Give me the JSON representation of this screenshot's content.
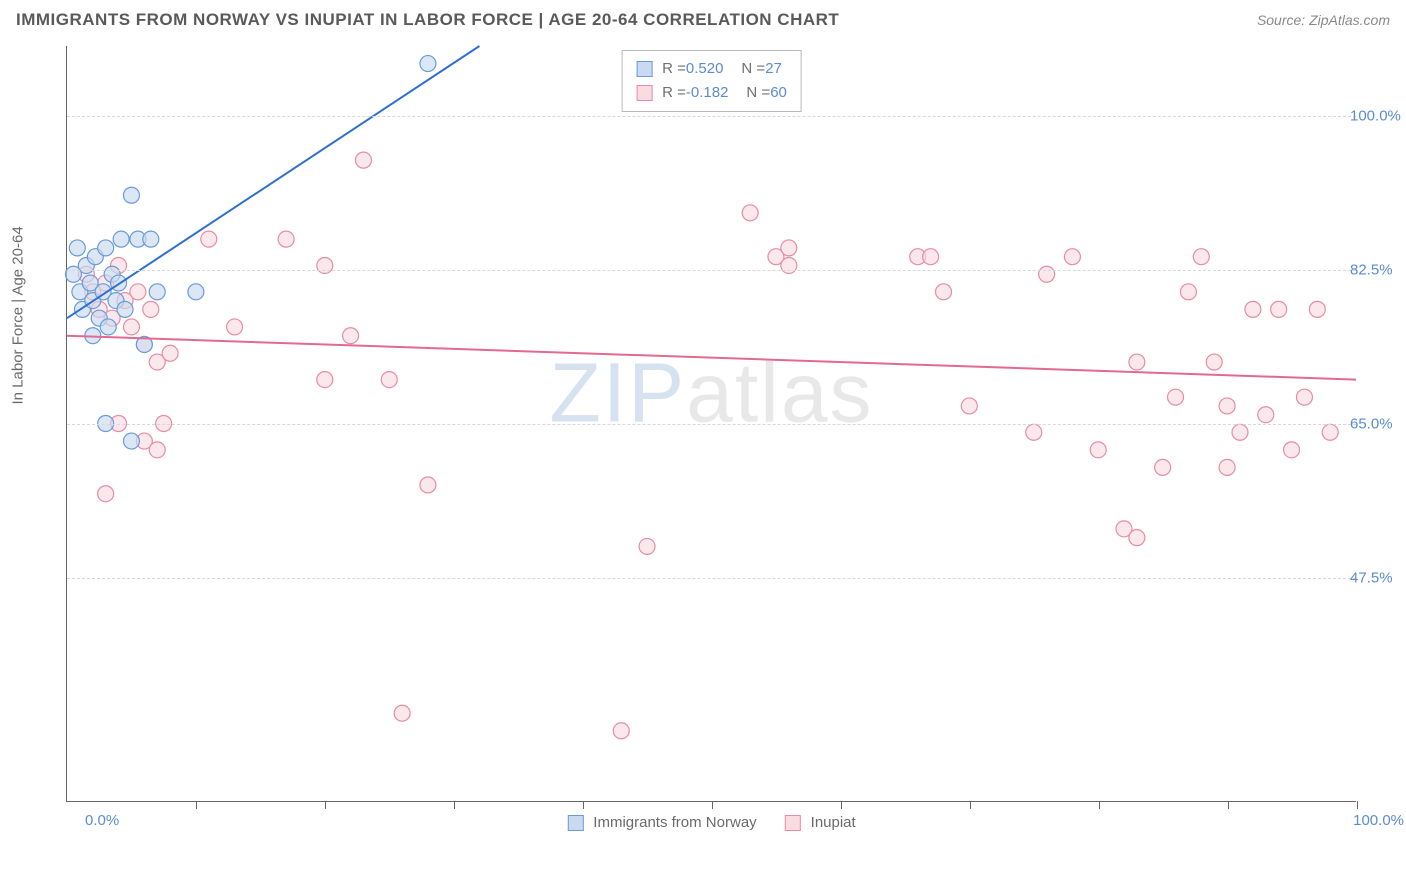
{
  "header": {
    "title": "IMMIGRANTS FROM NORWAY VS INUPIAT IN LABOR FORCE | AGE 20-64 CORRELATION CHART",
    "source": "Source: ZipAtlas.com"
  },
  "chart": {
    "type": "scatter",
    "yaxis_title": "In Labor Force | Age 20-64",
    "xlim": [
      0,
      100
    ],
    "ylim": [
      22,
      108
    ],
    "xlabel_min": "0.0%",
    "xlabel_max": "100.0%",
    "ytick_values": [
      47.5,
      65.0,
      82.5,
      100.0
    ],
    "ytick_labels": [
      "47.5%",
      "65.0%",
      "82.5%",
      "100.0%"
    ],
    "xtick_positions": [
      10,
      20,
      30,
      40,
      50,
      60,
      70,
      80,
      90,
      100
    ],
    "background_color": "#ffffff",
    "grid_color": "#d8d8d8",
    "axis_color": "#666666",
    "tick_label_color": "#5b8bd4",
    "marker_radius": 8,
    "marker_stroke_width": 1.2,
    "line_width": 2
  },
  "series_a": {
    "name": "Immigrants from Norway",
    "color_fill": "#c9daf0",
    "color_stroke": "#6a9bd8",
    "line_color": "#2f6fd0",
    "r_label": "R = ",
    "r_value": "0.520",
    "n_label": "N = ",
    "n_value": "27",
    "trend": {
      "x1": 0,
      "y1": 77,
      "x2": 32,
      "y2": 108
    },
    "points": [
      {
        "x": 0.5,
        "y": 82
      },
      {
        "x": 0.8,
        "y": 85
      },
      {
        "x": 1.0,
        "y": 80
      },
      {
        "x": 1.2,
        "y": 78
      },
      {
        "x": 1.5,
        "y": 83
      },
      {
        "x": 1.8,
        "y": 81
      },
      {
        "x": 2.0,
        "y": 79
      },
      {
        "x": 2.2,
        "y": 84
      },
      {
        "x": 2.5,
        "y": 77
      },
      {
        "x": 2.8,
        "y": 80
      },
      {
        "x": 3.0,
        "y": 85
      },
      {
        "x": 3.2,
        "y": 76
      },
      {
        "x": 3.5,
        "y": 82
      },
      {
        "x": 3.8,
        "y": 79
      },
      {
        "x": 4.0,
        "y": 81
      },
      {
        "x": 4.5,
        "y": 78
      },
      {
        "x": 5.0,
        "y": 91
      },
      {
        "x": 4.2,
        "y": 86
      },
      {
        "x": 5.5,
        "y": 86
      },
      {
        "x": 6.0,
        "y": 74
      },
      {
        "x": 6.5,
        "y": 86
      },
      {
        "x": 7.0,
        "y": 80
      },
      {
        "x": 3.0,
        "y": 65
      },
      {
        "x": 5.0,
        "y": 63
      },
      {
        "x": 10.0,
        "y": 80
      },
      {
        "x": 28.0,
        "y": 106
      },
      {
        "x": 2.0,
        "y": 75
      }
    ]
  },
  "series_b": {
    "name": "Inupiat",
    "color_fill": "#f9dbe2",
    "color_stroke": "#e88ba4",
    "line_color": "#e36a8f",
    "r_label": "R = ",
    "r_value": "-0.182",
    "n_label": "N = ",
    "n_value": "60",
    "trend": {
      "x1": 0,
      "y1": 75,
      "x2": 100,
      "y2": 70
    },
    "points": [
      {
        "x": 1.5,
        "y": 82
      },
      {
        "x": 2.0,
        "y": 80
      },
      {
        "x": 2.5,
        "y": 78
      },
      {
        "x": 3.0,
        "y": 81
      },
      {
        "x": 3.5,
        "y": 77
      },
      {
        "x": 4.0,
        "y": 83
      },
      {
        "x": 4.5,
        "y": 79
      },
      {
        "x": 5.0,
        "y": 76
      },
      {
        "x": 5.5,
        "y": 80
      },
      {
        "x": 6.0,
        "y": 74
      },
      {
        "x": 6.5,
        "y": 78
      },
      {
        "x": 7.0,
        "y": 72
      },
      {
        "x": 7.5,
        "y": 65
      },
      {
        "x": 8.0,
        "y": 73
      },
      {
        "x": 4.0,
        "y": 65
      },
      {
        "x": 6.0,
        "y": 63
      },
      {
        "x": 7.0,
        "y": 62
      },
      {
        "x": 3.0,
        "y": 57
      },
      {
        "x": 11.0,
        "y": 86
      },
      {
        "x": 13.0,
        "y": 76
      },
      {
        "x": 17.0,
        "y": 86
      },
      {
        "x": 20.0,
        "y": 83
      },
      {
        "x": 20.0,
        "y": 70
      },
      {
        "x": 22.0,
        "y": 75
      },
      {
        "x": 23.0,
        "y": 95
      },
      {
        "x": 25.0,
        "y": 70
      },
      {
        "x": 26.0,
        "y": 32
      },
      {
        "x": 28.0,
        "y": 58
      },
      {
        "x": 43.0,
        "y": 30
      },
      {
        "x": 45.0,
        "y": 51
      },
      {
        "x": 53.0,
        "y": 89
      },
      {
        "x": 55.0,
        "y": 84
      },
      {
        "x": 56.0,
        "y": 85
      },
      {
        "x": 56.0,
        "y": 83
      },
      {
        "x": 66.0,
        "y": 84
      },
      {
        "x": 67.0,
        "y": 84
      },
      {
        "x": 68.0,
        "y": 80
      },
      {
        "x": 70.0,
        "y": 67
      },
      {
        "x": 75.0,
        "y": 64
      },
      {
        "x": 76.0,
        "y": 82
      },
      {
        "x": 78.0,
        "y": 84
      },
      {
        "x": 80.0,
        "y": 62
      },
      {
        "x": 82.0,
        "y": 53
      },
      {
        "x": 83.0,
        "y": 72
      },
      {
        "x": 83.0,
        "y": 52
      },
      {
        "x": 85.0,
        "y": 60
      },
      {
        "x": 86.0,
        "y": 68
      },
      {
        "x": 87.0,
        "y": 80
      },
      {
        "x": 88.0,
        "y": 84
      },
      {
        "x": 89.0,
        "y": 72
      },
      {
        "x": 90.0,
        "y": 67
      },
      {
        "x": 90.0,
        "y": 60
      },
      {
        "x": 91.0,
        "y": 64
      },
      {
        "x": 92.0,
        "y": 78
      },
      {
        "x": 93.0,
        "y": 66
      },
      {
        "x": 94.0,
        "y": 78
      },
      {
        "x": 95.0,
        "y": 62
      },
      {
        "x": 96.0,
        "y": 68
      },
      {
        "x": 97.0,
        "y": 78
      },
      {
        "x": 98.0,
        "y": 64
      }
    ]
  },
  "watermark": {
    "part1": "ZIP",
    "part2": "atlas"
  }
}
